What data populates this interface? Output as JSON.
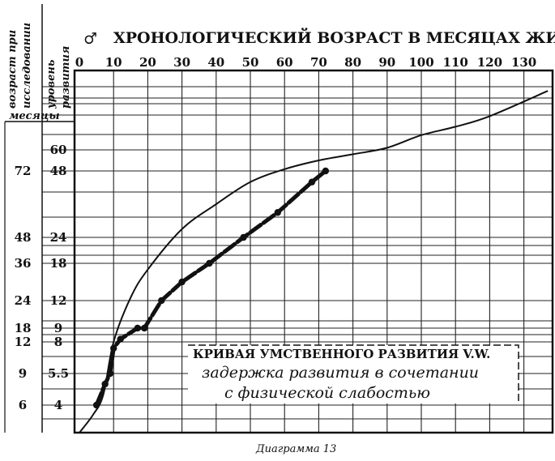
{
  "chart_data": {
    "type": "line",
    "title": "ХРОНОЛОГИЧЕСКИЙ ВОЗРАСТ В МЕСЯЦАХ ЖИЗНИ",
    "gender_symbol": "♂",
    "x_ticks": [
      "0",
      "10",
      "20",
      "30",
      "40",
      "50",
      "60",
      "70",
      "80",
      "90",
      "100",
      "110",
      "120",
      "130"
    ],
    "xlim": [
      0,
      140
    ],
    "left_axis_label": [
      "возраст при",
      "исследовании"
    ],
    "left_axis_unit": "месяцы",
    "left_ticks": [
      "72",
      "48",
      "36",
      "24",
      "18",
      "12",
      "9",
      "6"
    ],
    "right_axis_label": [
      "уровень",
      "развития"
    ],
    "right_ticks": [
      "60",
      "48",
      "24",
      "18",
      "12",
      "9",
      "8",
      "5.5",
      "4"
    ],
    "series": [
      {
        "style": "smooth-curve",
        "x": [
          0,
          4,
          7,
          10,
          15,
          20,
          30,
          40,
          50,
          60,
          70,
          80,
          90,
          100,
          110,
          120,
          137
        ],
        "y": [
          0,
          2.6,
          4.5,
          8,
          12.5,
          17,
          27,
          36,
          44,
          49,
          54,
          57.5,
          60.5,
          63.5,
          65.5,
          68,
          74
        ]
      },
      {
        "style": "thick-dotted",
        "x": [
          5,
          7.5,
          9,
          10,
          12,
          17,
          19,
          24,
          30,
          38,
          48,
          58,
          68,
          72
        ],
        "y": [
          4,
          5,
          5.5,
          7.5,
          8.2,
          9,
          9,
          12,
          15,
          18,
          24,
          33,
          44,
          48
        ]
      }
    ],
    "annotation": {
      "line1": "КРИВАЯ УМСТВЕННОГО РАЗВИТИЯ V.W.",
      "line2": "задержка развития в сочетании",
      "line3": "с физической слабостью"
    }
  },
  "caption": "Диаграмма 13"
}
